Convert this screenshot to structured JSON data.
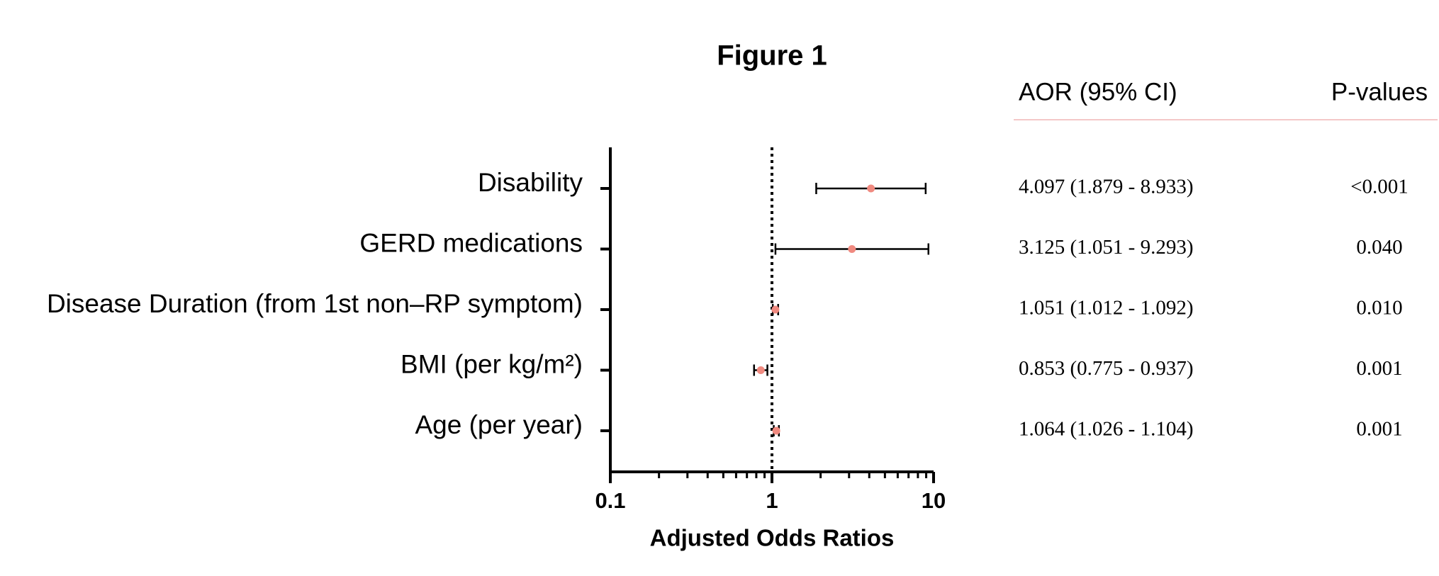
{
  "chart_data": {
    "type": "forest",
    "title": "Figure 1",
    "xlabel": "Adjusted Odds Ratios",
    "categories": [
      "Disability",
      "GERD medications",
      "Disease Duration (from 1st non–RP symptom)",
      "BMI (per kg/m²)",
      "Age (per year)"
    ],
    "values": [
      4.097,
      3.125,
      1.051,
      0.853,
      1.064
    ],
    "ci_lower": [
      1.879,
      1.051,
      1.012,
      0.775,
      1.026
    ],
    "ci_upper": [
      8.933,
      9.293,
      1.092,
      0.937,
      1.104
    ],
    "value_labels": [
      "4.097 (1.879 - 8.933)",
      "3.125 (1.051 - 9.293)",
      "1.051 (1.012 - 1.092)",
      "0.853 (0.775 - 0.937)",
      "1.064 (1.026 - 1.104)"
    ],
    "p_values": [
      "<0.001",
      "0.040",
      "0.010",
      "0.001",
      "0.001"
    ],
    "table_headers": [
      "AOR (95% CI)",
      "P-values"
    ],
    "color": "#f08a80",
    "error_color": "#000000",
    "xscale": "log",
    "xlim": [
      0.1,
      10
    ],
    "xticks": [
      0.1,
      1,
      10
    ],
    "minor_xticks": [
      0.2,
      0.3,
      0.4,
      0.5,
      0.6,
      0.7,
      0.8,
      0.9,
      2,
      3,
      4,
      5,
      6,
      7,
      8,
      9
    ],
    "reference_line": 1
  }
}
